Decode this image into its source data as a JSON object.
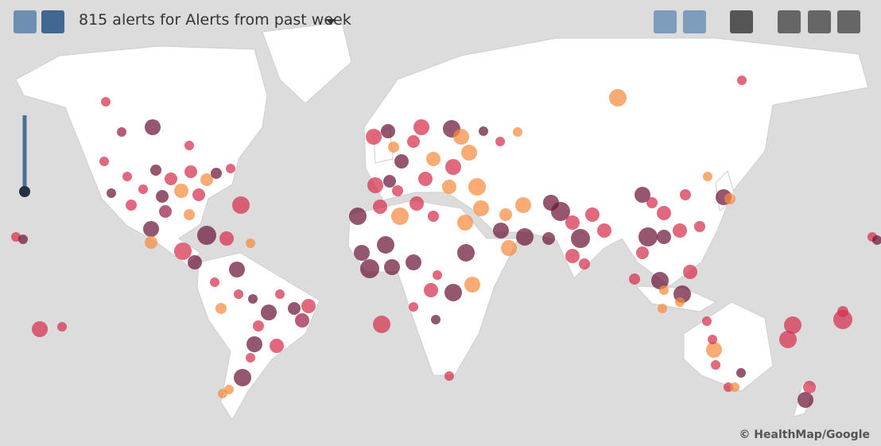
{
  "header": {
    "title": "815 alerts for Alerts from past week"
  },
  "footer": {
    "attribution": "© HealthMap/Google"
  }
}
